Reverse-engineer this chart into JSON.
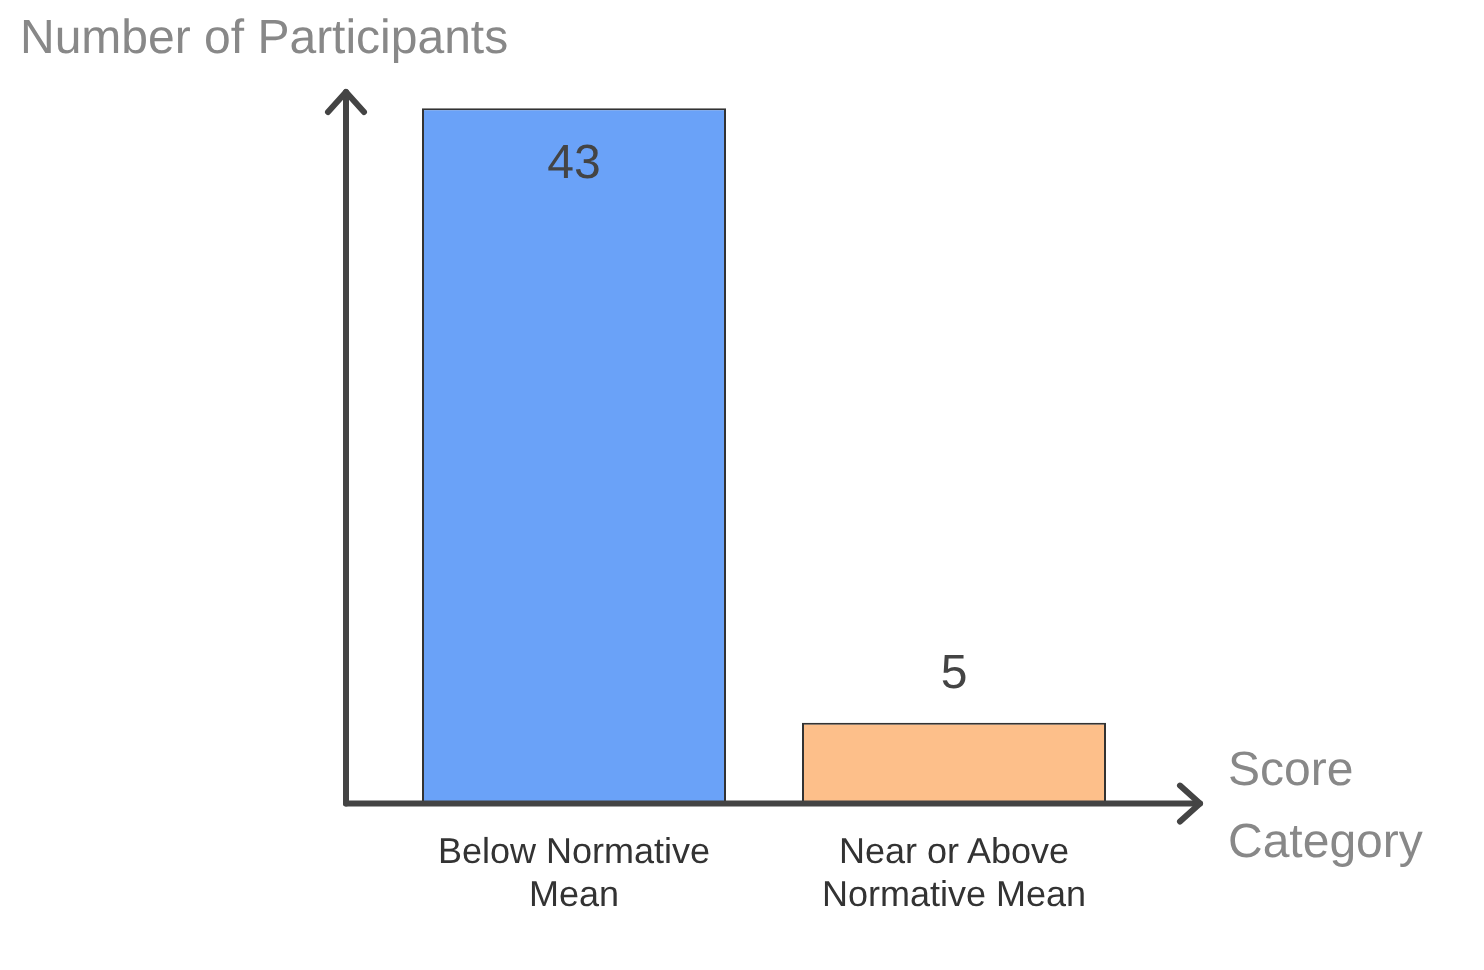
{
  "chart_data": {
    "type": "bar",
    "ylabel": "Number of Participants",
    "xlabel": "Score Category",
    "categories": [
      "Below Normative Mean",
      "Near or Above Normative Mean"
    ],
    "values": [
      43,
      5
    ],
    "colors": [
      "#6aa2f8",
      "#fdbf8a"
    ],
    "data_labels": true
  }
}
